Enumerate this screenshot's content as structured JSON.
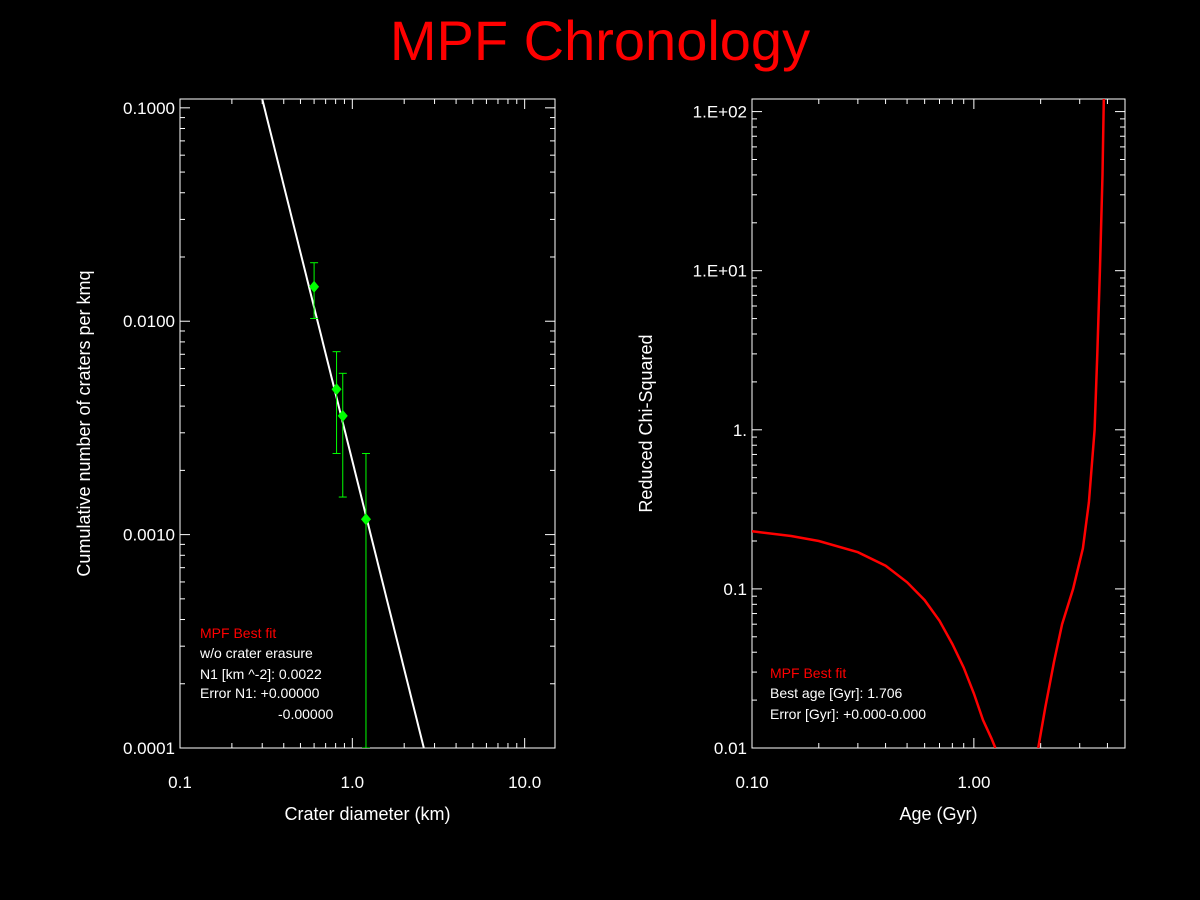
{
  "title": "MPF Chronology",
  "colors": {
    "background": "#000000",
    "title": "#ff0000",
    "axes": "#ffffff",
    "data_points": "#00ff00",
    "fit_line": "#ffffff",
    "chi_curve": "#ff0000"
  },
  "chart_data": [
    {
      "type": "scatter",
      "xlabel": "Crater diameter (km)",
      "ylabel": "Cumulative number of craters per kmq",
      "xscale": "log",
      "yscale": "log",
      "xlim": [
        0.1,
        15
      ],
      "ylim": [
        0.0001,
        0.11
      ],
      "x_tick_labels": [
        "0.1",
        "1.0",
        "10.0"
      ],
      "x_tick_values": [
        0.1,
        1.0,
        10.0
      ],
      "y_tick_labels": [
        "0.0001",
        "0.0010",
        "0.0100",
        "0.1000"
      ],
      "y_tick_values": [
        0.0001,
        0.001,
        0.01,
        0.1
      ],
      "series": [
        {
          "type": "scatter-errorbar",
          "points": [
            {
              "x": 0.6,
              "y": 0.0145,
              "ylow": 0.0103,
              "yhigh": 0.0188
            },
            {
              "x": 0.81,
              "y": 0.0048,
              "ylow": 0.0024,
              "yhigh": 0.0072
            },
            {
              "x": 0.88,
              "y": 0.0036,
              "ylow": 0.0015,
              "yhigh": 0.0057
            },
            {
              "x": 1.2,
              "y": 0.00118,
              "ylow": 0.0001,
              "yhigh": 0.0024
            }
          ]
        },
        {
          "type": "line",
          "points": [
            {
              "x": 0.3,
              "y": 0.11
            },
            {
              "x": 2.6,
              "y": 0.0001
            }
          ]
        }
      ],
      "legend": {
        "heading": "MPF Best fit",
        "lines": [
          "w/o crater erasure",
          "N1 [km ^-2]: 0.0022",
          "Error N1: +0.00000",
          "-0.00000"
        ]
      }
    },
    {
      "type": "line",
      "xlabel": "Age (Gyr)",
      "ylabel": "Reduced Chi-Squared",
      "xscale": "log",
      "yscale": "log",
      "xlim": [
        0.1,
        4.8
      ],
      "ylim": [
        0.01,
        120
      ],
      "x_tick_labels": [
        "0.10",
        "1.00"
      ],
      "x_tick_values": [
        0.1,
        1.0
      ],
      "y_tick_labels": [
        "0.01",
        "0.1",
        "1.",
        "1.E+01",
        "1.E+02"
      ],
      "y_tick_values": [
        0.01,
        0.1,
        1,
        10,
        100
      ],
      "series": [
        {
          "points": [
            {
              "x": 0.1,
              "y": 0.23
            },
            {
              "x": 0.15,
              "y": 0.215
            },
            {
              "x": 0.2,
              "y": 0.2
            },
            {
              "x": 0.3,
              "y": 0.17
            },
            {
              "x": 0.4,
              "y": 0.14
            },
            {
              "x": 0.5,
              "y": 0.11
            },
            {
              "x": 0.6,
              "y": 0.085
            },
            {
              "x": 0.7,
              "y": 0.063
            },
            {
              "x": 0.8,
              "y": 0.045
            },
            {
              "x": 0.9,
              "y": 0.032
            },
            {
              "x": 1.0,
              "y": 0.022
            },
            {
              "x": 1.1,
              "y": 0.015
            },
            {
              "x": 1.2,
              "y": 0.0115
            },
            {
              "x": 1.25,
              "y": 0.01
            }
          ]
        },
        {
          "points": [
            {
              "x": 1.95,
              "y": 0.01
            },
            {
              "x": 2.1,
              "y": 0.018
            },
            {
              "x": 2.3,
              "y": 0.035
            },
            {
              "x": 2.5,
              "y": 0.06
            },
            {
              "x": 2.8,
              "y": 0.1
            },
            {
              "x": 3.1,
              "y": 0.18
            },
            {
              "x": 3.3,
              "y": 0.35
            },
            {
              "x": 3.5,
              "y": 1.0
            },
            {
              "x": 3.6,
              "y": 3.0
            },
            {
              "x": 3.7,
              "y": 10
            },
            {
              "x": 3.8,
              "y": 40
            },
            {
              "x": 3.85,
              "y": 120
            }
          ]
        }
      ],
      "legend": {
        "heading": "MPF Best fit",
        "lines": [
          "Best age [Gyr]: 1.706",
          "Error [Gyr]: +0.000-0.000"
        ]
      }
    }
  ]
}
